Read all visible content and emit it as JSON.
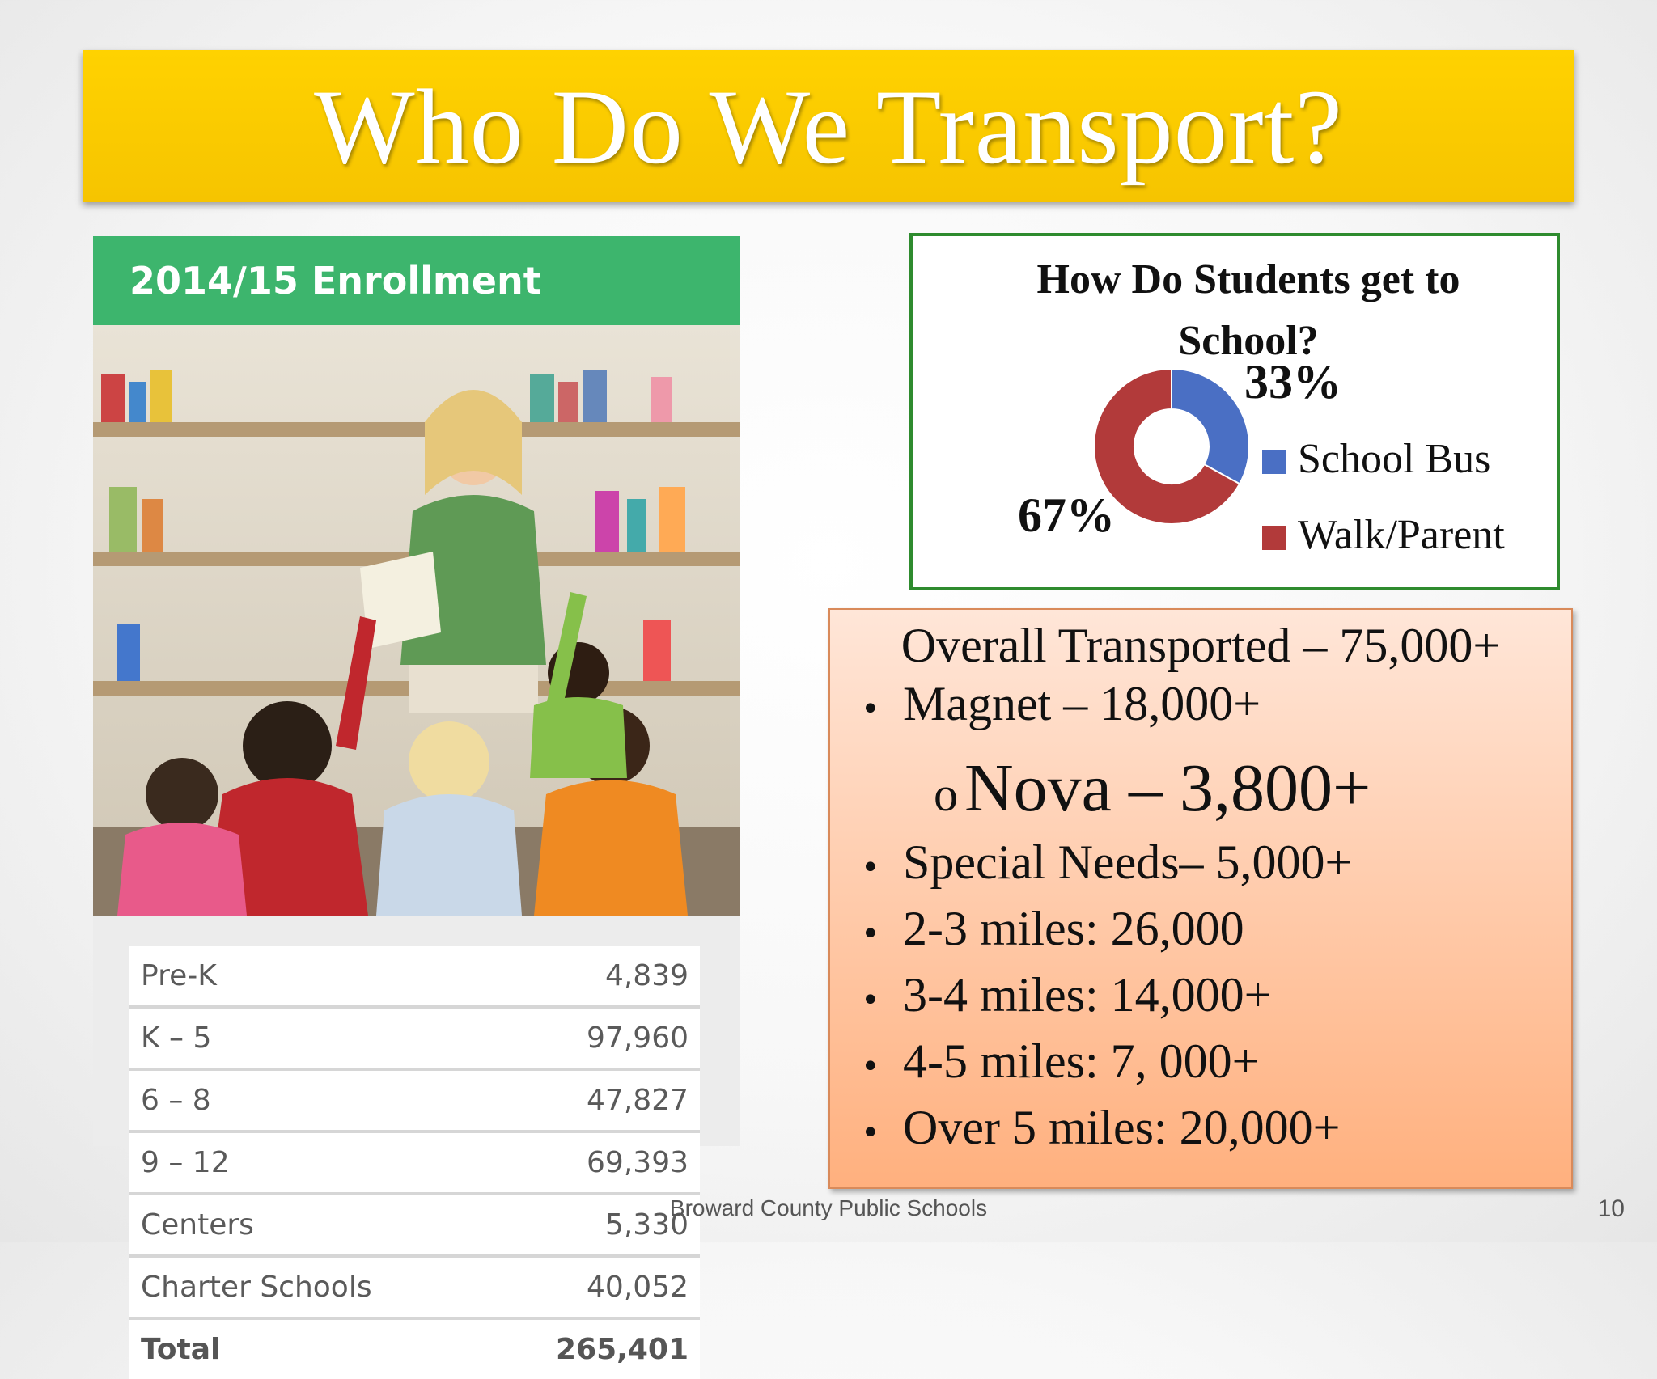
{
  "slide": {
    "title": "Who Do We Transport?",
    "footer": "Broward County Public Schools",
    "page_number": "10"
  },
  "enrollment": {
    "header": "2014/15 Enrollment",
    "rows": [
      {
        "label": "Pre-K",
        "value": "4,839"
      },
      {
        "label": "K – 5",
        "value": "97,960"
      },
      {
        "label": "6 – 8",
        "value": "47,827"
      },
      {
        "label": "9 – 12",
        "value": "69,393"
      },
      {
        "label": "Centers",
        "value": "5,330"
      },
      {
        "label": "Charter Schools",
        "value": "40,052"
      },
      {
        "label": "Total",
        "value": "265,401"
      }
    ]
  },
  "chart_data": {
    "type": "pie",
    "title": "How Do Students get to School?",
    "categories": [
      "School Bus",
      "Walk/Parent"
    ],
    "values": [
      33,
      67
    ],
    "labels": [
      "33%",
      "67%"
    ],
    "colors": [
      "#4a6fc4",
      "#b23a3a"
    ],
    "legend": "right"
  },
  "transport": {
    "heading": "Overall Transported – 75,000+",
    "items": [
      "Magnet – 18,000+",
      "Special Needs– 5,000+",
      "2-3 miles: 26,000",
      "3-4 miles: 14,000+",
      "4-5 miles: 7, 000+",
      "Over 5 miles: 20,000+"
    ],
    "sub_item": "Nova – 3,800+",
    "bullet": "•",
    "sub_bullet": "o"
  }
}
